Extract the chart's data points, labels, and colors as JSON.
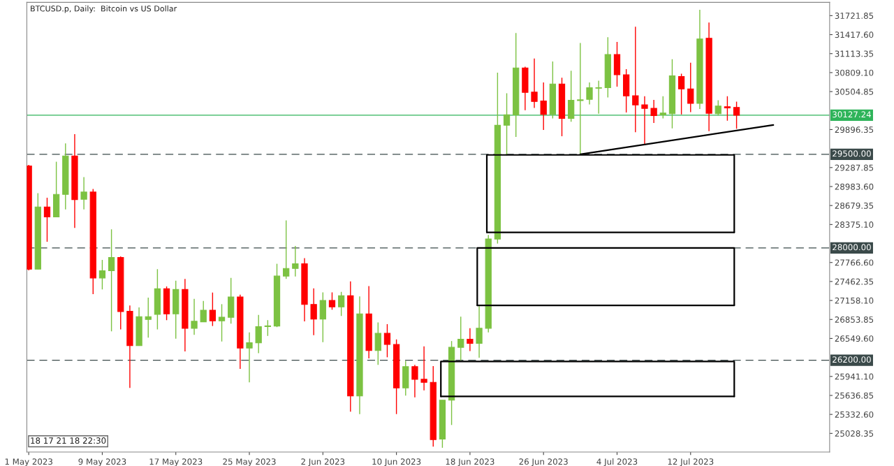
{
  "chart_data": {
    "type": "candlestick",
    "title": "BTCUSD.p, Daily:  Bitcoin vs US Dollar",
    "x": [
      "2023-05-01",
      "2023-05-02",
      "2023-05-03",
      "2023-05-04",
      "2023-05-05",
      "2023-05-06",
      "2023-05-07",
      "2023-05-08",
      "2023-05-09",
      "2023-05-10",
      "2023-05-11",
      "2023-05-12",
      "2023-05-13",
      "2023-05-14",
      "2023-05-15",
      "2023-05-16",
      "2023-05-17",
      "2023-05-18",
      "2023-05-19",
      "2023-05-20",
      "2023-05-21",
      "2023-05-22",
      "2023-05-23",
      "2023-05-24",
      "2023-05-25",
      "2023-05-26",
      "2023-05-27",
      "2023-05-28",
      "2023-05-29",
      "2023-05-30",
      "2023-05-31",
      "2023-06-01",
      "2023-06-02",
      "2023-06-03",
      "2023-06-04",
      "2023-06-05",
      "2023-06-06",
      "2023-06-07",
      "2023-06-08",
      "2023-06-09",
      "2023-06-10",
      "2023-06-11",
      "2023-06-12",
      "2023-06-13",
      "2023-06-14",
      "2023-06-15",
      "2023-06-16",
      "2023-06-17",
      "2023-06-18",
      "2023-06-19",
      "2023-06-20",
      "2023-06-21",
      "2023-06-22",
      "2023-06-23",
      "2023-06-24",
      "2023-06-25",
      "2023-06-26",
      "2023-06-27",
      "2023-06-28",
      "2023-06-29",
      "2023-06-30",
      "2023-07-01",
      "2023-07-02",
      "2023-07-03",
      "2023-07-04",
      "2023-07-05",
      "2023-07-06",
      "2023-07-07",
      "2023-07-08",
      "2023-07-09",
      "2023-07-10",
      "2023-07-11",
      "2023-07-12",
      "2023-07-13",
      "2023-07-14",
      "2023-07-15",
      "2023-07-16",
      "2023-07-17"
    ],
    "ohlc": [
      [
        29314,
        29330,
        27640,
        27660
      ],
      [
        27660,
        28876,
        27660,
        28656
      ],
      [
        28656,
        28805,
        28098,
        28497
      ],
      [
        28497,
        29381,
        28497,
        28857
      ],
      [
        28857,
        29675,
        28616,
        29474
      ],
      [
        29474,
        29823,
        28321,
        28775
      ],
      [
        28779,
        29135,
        28616,
        28895
      ],
      [
        28895,
        28943,
        27259,
        27519
      ],
      [
        27519,
        27809,
        27334,
        27635
      ],
      [
        27635,
        28299,
        26665,
        27846
      ],
      [
        27846,
        27864,
        26694,
        26980
      ],
      [
        26984,
        27077,
        25757,
        26434
      ],
      [
        26434,
        27047,
        26434,
        26899
      ],
      [
        26855,
        27203,
        26564,
        26899
      ],
      [
        26936,
        27660,
        26694,
        27345
      ],
      [
        27345,
        27382,
        26843,
        26943
      ],
      [
        26943,
        27474,
        26545,
        27334
      ],
      [
        27334,
        27504,
        26341,
        26713
      ],
      [
        26713,
        27184,
        26609,
        26824
      ],
      [
        26816,
        27151,
        26816,
        27002
      ],
      [
        27002,
        27285,
        26749,
        26832
      ],
      [
        26832,
        27099,
        26501,
        26891
      ],
      [
        26888,
        27519,
        26787,
        27214
      ],
      [
        27214,
        27251,
        26062,
        26397
      ],
      [
        26397,
        26646,
        25846,
        26482
      ],
      [
        26479,
        26928,
        26315,
        26738
      ],
      [
        26740,
        26843,
        26590,
        26751
      ],
      [
        26749,
        27746,
        26731,
        27549
      ],
      [
        27549,
        28441,
        27504,
        27671
      ],
      [
        27671,
        28032,
        27541,
        27746
      ],
      [
        27746,
        27835,
        26824,
        27095
      ],
      [
        27095,
        27351,
        26601,
        26861
      ],
      [
        26861,
        27288,
        26490,
        27159
      ],
      [
        27159,
        27288,
        27010,
        27055
      ],
      [
        27055,
        27296,
        26910,
        27233
      ],
      [
        27233,
        27463,
        25375,
        25628
      ],
      [
        25628,
        27222,
        25338,
        26943
      ],
      [
        26943,
        27389,
        26230,
        26356
      ],
      [
        26356,
        26805,
        26125,
        26631
      ],
      [
        26631,
        26779,
        26248,
        26453
      ],
      [
        26453,
        26534,
        25338,
        25757
      ],
      [
        25757,
        26192,
        25634,
        26099
      ],
      [
        26099,
        26125,
        25605,
        25895
      ],
      [
        25895,
        26423,
        25717,
        25846
      ],
      [
        25846,
        26107,
        24817,
        24929
      ],
      [
        24937,
        25561,
        24798,
        25561
      ],
      [
        25561,
        26508,
        25163,
        26407
      ],
      [
        26407,
        26899,
        26200,
        26538
      ],
      [
        26538,
        26713,
        26348,
        26471
      ],
      [
        26471,
        27066,
        26241,
        26713
      ],
      [
        26713,
        28207,
        26646,
        28143
      ],
      [
        28143,
        30808,
        28070,
        29965
      ],
      [
        29967,
        30478,
        29481,
        30132
      ],
      [
        30132,
        31443,
        29779,
        30883
      ],
      [
        30883,
        30902,
        30206,
        30492
      ],
      [
        30496,
        31035,
        30244,
        30347
      ],
      [
        30355,
        30652,
        29890,
        30139
      ],
      [
        30139,
        30986,
        30076,
        30626
      ],
      [
        30626,
        30727,
        29790,
        30076
      ],
      [
        30076,
        30838,
        30021,
        30366
      ],
      [
        30362,
        31284,
        29489,
        30373
      ],
      [
        30381,
        30652,
        30299,
        30567
      ],
      [
        30560,
        30679,
        30150,
        30567
      ],
      [
        30567,
        31376,
        30411,
        31098
      ],
      [
        31098,
        31302,
        30585,
        30774
      ],
      [
        30774,
        30864,
        30169,
        30437
      ],
      [
        30437,
        31544,
        29853,
        30292
      ],
      [
        30292,
        30429,
        29667,
        30236
      ],
      [
        30236,
        30373,
        30002,
        30121
      ],
      [
        30132,
        30429,
        30076,
        30161
      ],
      [
        30150,
        31024,
        29916,
        30757
      ],
      [
        30745,
        30790,
        30139,
        30548
      ],
      [
        30548,
        30968,
        30177,
        30317
      ],
      [
        30317,
        31816,
        30225,
        31348
      ],
      [
        31359,
        31611,
        29871,
        30158
      ],
      [
        30150,
        30366,
        30121,
        30273
      ],
      [
        30262,
        30429,
        30039,
        30244
      ],
      [
        30250,
        30344,
        29909,
        30127.24
      ]
    ],
    "colors": [
      "#ff0000",
      "#7cc242",
      "#ff0000",
      "#7cc242",
      "#7cc242",
      "#ff0000",
      "#7cc242",
      "#ff0000",
      "#7cc242",
      "#7cc242",
      "#ff0000",
      "#ff0000",
      "#7cc242",
      "#7cc242",
      "#7cc242",
      "#ff0000",
      "#7cc242",
      "#ff0000",
      "#7cc242",
      "#7cc242",
      "#ff0000",
      "#7cc242",
      "#7cc242",
      "#ff0000",
      "#7cc242",
      "#7cc242",
      "#7cc242",
      "#7cc242",
      "#7cc242",
      "#7cc242",
      "#ff0000",
      "#ff0000",
      "#7cc242",
      "#ff0000",
      "#7cc242",
      "#ff0000",
      "#7cc242",
      "#ff0000",
      "#7cc242",
      "#ff0000",
      "#ff0000",
      "#7cc242",
      "#ff0000",
      "#ff0000",
      "#ff0000",
      "#7cc242",
      "#7cc242",
      "#7cc242",
      "#ff0000",
      "#7cc242",
      "#7cc242",
      "#7cc242",
      "#7cc242",
      "#7cc242",
      "#ff0000",
      "#ff0000",
      "#ff0000",
      "#7cc242",
      "#ff0000",
      "#7cc242",
      "#7cc242",
      "#7cc242",
      "#7cc242",
      "#7cc242",
      "#ff0000",
      "#ff0000",
      "#ff0000",
      "#ff0000",
      "#ff0000",
      "#7cc242",
      "#7cc242",
      "#ff0000",
      "#ff0000",
      "#7cc242",
      "#ff0000",
      "#7cc242",
      "#ff0000",
      "#ff0000"
    ],
    "series": [
      {
        "type": "line",
        "color": "#000000",
        "x": [
          "2023-06-30",
          "2023-07-21"
        ],
        "values": [
          29500,
          29970
        ]
      },
      {
        "type": "line",
        "color": "#000000",
        "x": [
          "2023-06-19T20:00",
          "2023-06-19T20:00",
          "2023-07-16T18:00",
          "2023-07-16T18:00"
        ],
        "values": [
          28250,
          29490,
          29490,
          28250
        ]
      },
      {
        "type": "line",
        "color": "#000000",
        "x": [
          "2023-06-19T20:00",
          "2023-07-16T18:00"
        ],
        "values": [
          28250,
          28250
        ]
      },
      {
        "type": "line",
        "color": "#000000",
        "x": [
          "2023-06-18T19:00",
          "2023-06-18T19:00",
          "2023-07-16T18:00",
          "2023-07-16T18:00"
        ],
        "values": [
          27080,
          28000,
          28000,
          27080
        ]
      },
      {
        "type": "line",
        "color": "#000000",
        "x": [
          "2023-06-18T19:00",
          "2023-07-16T18:00"
        ],
        "values": [
          27080,
          27080
        ]
      },
      {
        "type": "line",
        "color": "#000000",
        "x": [
          "2023-06-14T20:00",
          "2023-06-14T20:00",
          "2023-07-16T18:00",
          "2023-07-16T18:00"
        ],
        "values": [
          25620,
          26180,
          26180,
          25620
        ]
      },
      {
        "type": "line",
        "color": "#000000",
        "x": [
          "2023-06-14T20:00",
          "2023-07-16T18:00"
        ],
        "values": [
          25620,
          25620
        ]
      }
    ],
    "ref_lines": [
      {
        "axis": "y",
        "value": 30127.24,
        "label": "30127.24",
        "color": "#2fb45a",
        "line_style": "solid"
      },
      {
        "axis": "y",
        "value": 29500,
        "label": "29500.00",
        "color": "#3b4a4a",
        "line_style": "dashed"
      },
      {
        "axis": "y",
        "value": 28000,
        "label": "28000.00",
        "color": "#3b4a4a",
        "line_style": "dashed"
      },
      {
        "axis": "y",
        "value": 26200,
        "label": "26200.00",
        "color": "#3b4a4a",
        "line_style": "dashed"
      }
    ],
    "annotations": [
      "18 17 21 18 22:30"
    ],
    "xlim": [
      "2023-04-30T19:00",
      "2023-07-27T03:00"
    ],
    "xticks": [
      {
        "value": "2023-05-01",
        "label": "1 May 2023"
      },
      {
        "value": "2023-05-09",
        "label": "9 May 2023"
      },
      {
        "value": "2023-05-17",
        "label": "17 May 2023"
      },
      {
        "value": "2023-05-25",
        "label": "25 May 2023"
      },
      {
        "value": "2023-06-02",
        "label": "2 Jun 2023"
      },
      {
        "value": "2023-06-10",
        "label": "10 Jun 2023"
      },
      {
        "value": "2023-06-18",
        "label": "18 Jun 2023"
      },
      {
        "value": "2023-06-26",
        "label": "26 Jun 2023"
      },
      {
        "value": "2023-07-04",
        "label": "4 Jul 2023"
      },
      {
        "value": "2023-07-12",
        "label": "12 Jul 2023"
      }
    ],
    "ylim": [
      24730,
      31935
    ],
    "yticks": [
      {
        "value": 31721.85,
        "label": "31721.85"
      },
      {
        "value": 31417.6,
        "label": "31417.60"
      },
      {
        "value": 31113.35,
        "label": "31113.35"
      },
      {
        "value": 30809.1,
        "label": "30809.10"
      },
      {
        "value": 30504.85,
        "label": "30504.85"
      },
      {
        "value": 29896.35,
        "label": "29896.35"
      },
      {
        "value": 29287.85,
        "label": "29287.85"
      },
      {
        "value": 28983.6,
        "label": "28983.60"
      },
      {
        "value": 28679.35,
        "label": "28679.35"
      },
      {
        "value": 28375.1,
        "label": "28375.10"
      },
      {
        "value": 27766.6,
        "label": "27766.60"
      },
      {
        "value": 27462.35,
        "label": "27462.35"
      },
      {
        "value": 27158.1,
        "label": "27158.10"
      },
      {
        "value": 26853.85,
        "label": "26853.85"
      },
      {
        "value": 26549.6,
        "label": "26549.60"
      },
      {
        "value": 25941.1,
        "label": "25941.10"
      },
      {
        "value": 25636.85,
        "label": "25636.85"
      },
      {
        "value": 25332.6,
        "label": "25332.60"
      },
      {
        "value": 25028.35,
        "label": "25028.35"
      }
    ],
    "grid": false
  }
}
